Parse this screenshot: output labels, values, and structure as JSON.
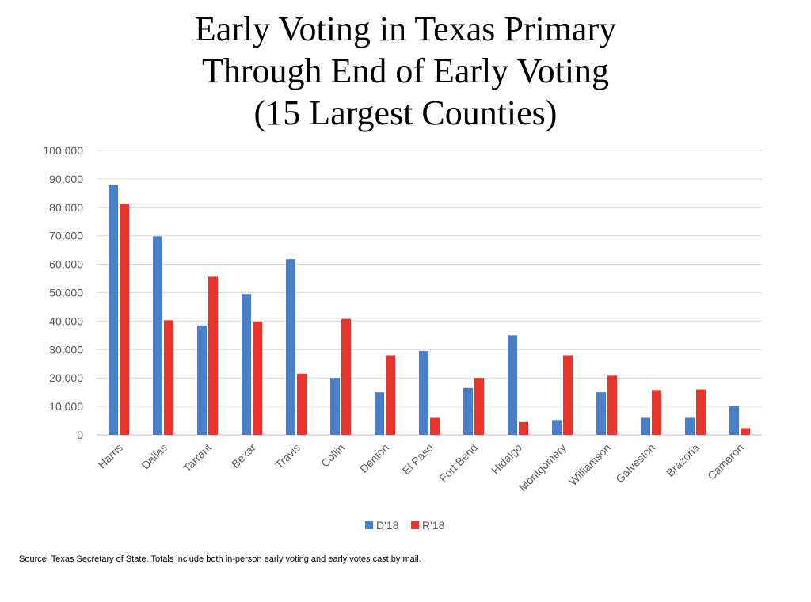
{
  "chart_data": {
    "type": "bar",
    "title": [
      "Early Voting in Texas Primary",
      "Through End of Early Voting",
      "(15 Largest Counties)"
    ],
    "xlabel": "",
    "ylabel": "",
    "ylim": [
      0,
      100000
    ],
    "yticks": [
      0,
      10000,
      20000,
      30000,
      40000,
      50000,
      60000,
      70000,
      80000,
      90000,
      100000
    ],
    "ytick_labels": [
      "0",
      "10,000",
      "20,000",
      "30,000",
      "40,000",
      "50,000",
      "60,000",
      "70,000",
      "80,000",
      "90,000",
      "100,000"
    ],
    "grid": true,
    "legend_position": "bottom",
    "categories": [
      "Harris",
      "Dallas",
      "Tarrant",
      "Bexar",
      "Travis",
      "Collin",
      "Denton",
      "El Paso",
      "Fort Bend",
      "Hidalgo",
      "Montgomery",
      "Williamson",
      "Galveston",
      "Brazoria",
      "Cameron"
    ],
    "series": [
      {
        "name": "D'18",
        "color": "#4a7fc9",
        "values": [
          87800,
          69800,
          38500,
          49500,
          61800,
          20000,
          15000,
          29500,
          16500,
          35000,
          5200,
          15000,
          6000,
          6000,
          10200
        ]
      },
      {
        "name": "R'18",
        "color": "#e8342b",
        "values": [
          81300,
          40300,
          55600,
          39800,
          21500,
          40800,
          28000,
          6000,
          20000,
          4500,
          28000,
          20800,
          15800,
          16000,
          2400
        ]
      }
    ]
  },
  "footer": {
    "source": "Source: Texas Secretary of State. Totals include both in-person early voting and early votes cast by mail."
  }
}
